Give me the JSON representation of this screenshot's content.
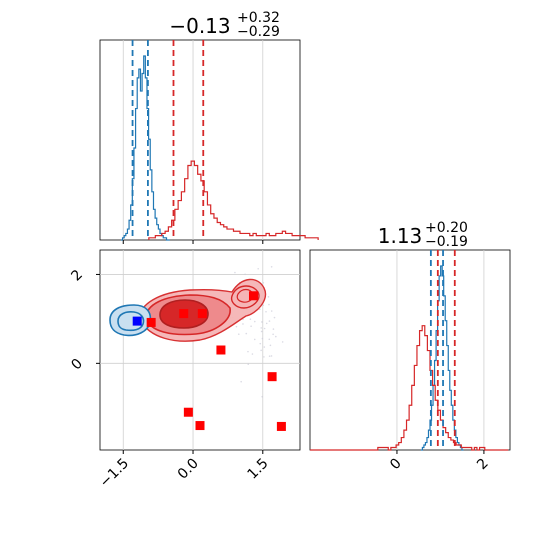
{
  "chart_data": [
    {
      "type": "histogram",
      "panel": "marginal-x",
      "title_main": "−0.13",
      "title_sup": "+0.32",
      "title_sub": "−0.29",
      "xlim": [
        -2.0,
        2.3
      ],
      "grid": true,
      "colors": {
        "blue": "#1f77b4",
        "red": "#d62728"
      },
      "series": [
        {
          "color_name": "blue",
          "bin_start": -1.55,
          "bin_width": 0.035,
          "values": [
            0,
            1,
            2,
            3,
            5,
            9,
            16,
            28,
            42,
            60,
            74,
            78,
            68,
            76,
            84,
            74,
            60,
            46,
            32,
            22,
            14,
            10,
            7,
            5,
            3,
            2,
            1,
            1,
            0,
            0
          ],
          "quantiles": [
            -1.3,
            -0.97
          ]
        },
        {
          "color_name": "red",
          "bin_start": -0.95,
          "bin_width": 0.07,
          "values": [
            1,
            1,
            2,
            2,
            3,
            4,
            6,
            9,
            14,
            18,
            22,
            28,
            34,
            36,
            34,
            30,
            27,
            22,
            16,
            12,
            10,
            8,
            7,
            6,
            5,
            5,
            4,
            4,
            3,
            3,
            3,
            2,
            3,
            2,
            2,
            2,
            3,
            2,
            2,
            3,
            3,
            4,
            3,
            3,
            2,
            2,
            2,
            2,
            1,
            1,
            1,
            1
          ],
          "quantiles": [
            -0.42,
            0.22
          ]
        }
      ]
    },
    {
      "type": "scatter",
      "panel": "joint",
      "xlim": [
        -2.0,
        2.3
      ],
      "ylim": [
        -1.95,
        2.55
      ],
      "x_ticks": [
        {
          "value": -1.5,
          "label": "−1.5"
        },
        {
          "value": 0.0,
          "label": "0.0"
        },
        {
          "value": 1.5,
          "label": "1.5"
        }
      ],
      "y_ticks": [
        {
          "value": 0,
          "label": "0"
        },
        {
          "value": 2,
          "label": "2"
        }
      ],
      "grid": true,
      "markers": {
        "blue": [
          [
            -1.2,
            0.95
          ]
        ],
        "red": [
          [
            -0.9,
            0.92
          ],
          [
            -0.2,
            1.12
          ],
          [
            0.2,
            1.12
          ],
          [
            0.6,
            0.3
          ],
          [
            1.3,
            1.52
          ],
          [
            -0.1,
            -1.1
          ],
          [
            0.15,
            -1.4
          ],
          [
            1.7,
            -0.3
          ],
          [
            1.9,
            -1.42
          ]
        ]
      }
    },
    {
      "type": "histogram",
      "panel": "marginal-y",
      "title_main": "1.13",
      "title_sup": "+0.20",
      "title_sub": "−0.19",
      "xlim": [
        -2.0,
        2.6
      ],
      "x_ticks": [
        {
          "value": 0,
          "label": "0"
        },
        {
          "value": 2,
          "label": "2"
        }
      ],
      "grid": true,
      "series": [
        {
          "color_name": "blue",
          "bin_start": 0.55,
          "bin_width": 0.035,
          "values": [
            0,
            1,
            2,
            3,
            5,
            8,
            12,
            18,
            26,
            36,
            48,
            60,
            70,
            74,
            70,
            62,
            52,
            42,
            32,
            24,
            18,
            12,
            8,
            5,
            3,
            2,
            1,
            0
          ],
          "quantiles": [
            0.78,
            1.06
          ]
        },
        {
          "color_name": "red",
          "bin_start": -2.0,
          "bin_width": 0.06,
          "values": [
            0,
            0,
            0,
            0,
            0,
            0,
            0,
            0,
            0,
            0,
            0,
            0,
            0,
            0,
            0,
            0,
            0,
            0,
            0,
            0,
            0,
            0,
            0,
            0,
            0,
            0,
            1,
            1,
            1,
            1,
            0,
            1,
            1,
            2,
            3,
            5,
            8,
            12,
            18,
            26,
            34,
            42,
            48,
            50,
            46,
            40,
            32,
            26,
            20,
            16,
            12,
            9,
            7,
            5,
            4,
            3,
            2,
            2,
            1,
            1,
            1,
            1,
            0,
            1,
            0,
            1,
            1,
            0,
            0,
            0,
            0,
            0,
            0,
            0,
            0,
            0
          ],
          "quantiles": [
            0.94,
            1.33
          ]
        }
      ]
    }
  ]
}
